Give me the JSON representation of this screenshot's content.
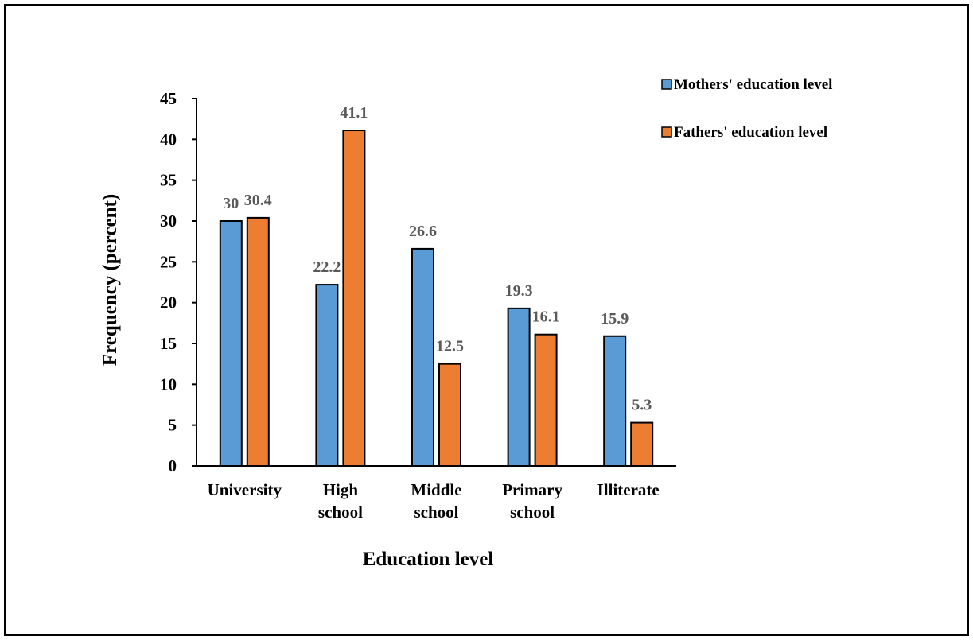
{
  "chart_data": {
    "type": "bar",
    "categories": [
      [
        "University"
      ],
      [
        "High",
        "school"
      ],
      [
        "Middle",
        "school"
      ],
      [
        "Primary",
        "school"
      ],
      [
        "Illiterate"
      ]
    ],
    "series": [
      {
        "name": "Mothers' education level",
        "values": [
          30,
          22.2,
          26.6,
          19.3,
          15.9
        ],
        "color": "#5B9BD5"
      },
      {
        "name": "Fathers' education level",
        "values": [
          30.4,
          41.1,
          12.5,
          16.1,
          5.3
        ],
        "color": "#ED7D31"
      }
    ],
    "data_labels": [
      [
        "30",
        "22.2",
        "26.6",
        "19.3",
        "15.9"
      ],
      [
        "30.4",
        "41.1",
        "12.5",
        "16.1",
        "5.3"
      ]
    ],
    "xlabel": "Education level",
    "ylabel": "Frequency (percent)",
    "ylim": [
      0,
      45
    ],
    "yticks": [
      0,
      5,
      10,
      15,
      20,
      25,
      30,
      35,
      40,
      45
    ],
    "grid": false,
    "legend_position": "top-right"
  }
}
